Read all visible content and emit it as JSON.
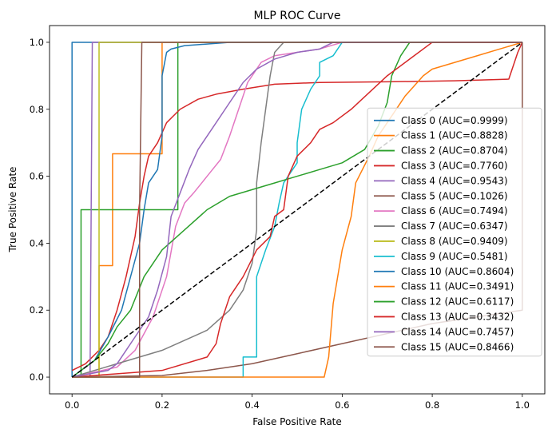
{
  "chart_data": {
    "type": "line",
    "title": "MLP ROC Curve",
    "xlabel": "False Positive Rate",
    "ylabel": "True Positive Rate",
    "xlim": [
      -0.05,
      1.05
    ],
    "ylim": [
      -0.05,
      1.05
    ],
    "xticks": [
      "0.0",
      "0.2",
      "0.4",
      "0.6",
      "0.8",
      "1.0"
    ],
    "yticks": [
      "0.0",
      "0.2",
      "0.4",
      "0.6",
      "0.8",
      "1.0"
    ],
    "grid": false,
    "legend_position": "center-right",
    "series": [
      {
        "name": "Class 0 (AUC=0.9999)",
        "color": "#1f77b4",
        "points": [
          [
            0,
            0
          ],
          [
            0,
            1
          ],
          [
            1,
            1
          ]
        ]
      },
      {
        "name": "Class 1 (AUC=0.8828)",
        "color": "#ff7f0e",
        "points": [
          [
            0,
            0
          ],
          [
            0.06,
            0
          ],
          [
            0.06,
            0.333
          ],
          [
            0.09,
            0.333
          ],
          [
            0.09,
            0.667
          ],
          [
            0.2,
            0.667
          ],
          [
            0.2,
            1
          ],
          [
            1,
            1
          ]
        ]
      },
      {
        "name": "Class 2 (AUC=0.8704)",
        "color": "#2ca02c",
        "points": [
          [
            0,
            0
          ],
          [
            0.02,
            0
          ],
          [
            0.02,
            0.5
          ],
          [
            0.235,
            0.5
          ],
          [
            0.235,
            1
          ],
          [
            1,
            1
          ]
        ]
      },
      {
        "name": "Class 3 (AUC=0.7760)",
        "color": "#d62728",
        "points": [
          [
            0,
            0.02
          ],
          [
            0.03,
            0.04
          ],
          [
            0.06,
            0.08
          ],
          [
            0.08,
            0.12
          ],
          [
            0.1,
            0.2
          ],
          [
            0.12,
            0.3
          ],
          [
            0.14,
            0.42
          ],
          [
            0.15,
            0.52
          ],
          [
            0.16,
            0.6
          ],
          [
            0.17,
            0.66
          ],
          [
            0.19,
            0.7
          ],
          [
            0.21,
            0.76
          ],
          [
            0.24,
            0.8
          ],
          [
            0.28,
            0.83
          ],
          [
            0.32,
            0.845
          ],
          [
            0.38,
            0.86
          ],
          [
            0.45,
            0.875
          ],
          [
            0.55,
            0.88
          ],
          [
            0.7,
            0.882
          ],
          [
            0.85,
            0.885
          ],
          [
            0.97,
            0.89
          ],
          [
            0.99,
            0.97
          ],
          [
            1,
            1
          ]
        ]
      },
      {
        "name": "Class 4 (AUC=0.9543)",
        "color": "#9467bd",
        "points": [
          [
            0,
            0
          ],
          [
            0.04,
            0
          ],
          [
            0.045,
            1
          ],
          [
            1,
            1
          ]
        ]
      },
      {
        "name": "Class 5 (AUC=0.1026)",
        "color": "#8c564b",
        "points": [
          [
            0,
            0
          ],
          [
            0.2,
            0.005
          ],
          [
            0.3,
            0.02
          ],
          [
            0.4,
            0.04
          ],
          [
            0.5,
            0.07
          ],
          [
            0.6,
            0.1
          ],
          [
            0.7,
            0.13
          ],
          [
            0.8,
            0.16
          ],
          [
            0.9,
            0.18
          ],
          [
            1,
            0.2
          ],
          [
            1,
            1
          ]
        ]
      },
      {
        "name": "Class 6 (AUC=0.7494)",
        "color": "#e377c2",
        "points": [
          [
            0,
            0
          ],
          [
            0.1,
            0.03
          ],
          [
            0.14,
            0.08
          ],
          [
            0.18,
            0.18
          ],
          [
            0.21,
            0.3
          ],
          [
            0.23,
            0.45
          ],
          [
            0.25,
            0.52
          ],
          [
            0.27,
            0.55
          ],
          [
            0.3,
            0.6
          ],
          [
            0.33,
            0.65
          ],
          [
            0.35,
            0.72
          ],
          [
            0.37,
            0.8
          ],
          [
            0.39,
            0.88
          ],
          [
            0.42,
            0.94
          ],
          [
            0.45,
            0.96
          ],
          [
            0.5,
            0.97
          ],
          [
            0.55,
            0.98
          ],
          [
            0.6,
            1
          ],
          [
            1,
            1
          ]
        ]
      },
      {
        "name": "Class 7 (AUC=0.6347)",
        "color": "#7f7f7f",
        "points": [
          [
            0,
            0
          ],
          [
            0.1,
            0.04
          ],
          [
            0.2,
            0.08
          ],
          [
            0.3,
            0.14
          ],
          [
            0.35,
            0.2
          ],
          [
            0.38,
            0.26
          ],
          [
            0.4,
            0.34
          ],
          [
            0.41,
            0.44
          ],
          [
            0.41,
            0.58
          ],
          [
            0.42,
            0.7
          ],
          [
            0.43,
            0.8
          ],
          [
            0.44,
            0.9
          ],
          [
            0.45,
            0.97
          ],
          [
            0.47,
            1
          ],
          [
            1,
            1
          ]
        ]
      },
      {
        "name": "Class 8 (AUC=0.9409)",
        "color": "#bcbd22",
        "points": [
          [
            0,
            0
          ],
          [
            0.06,
            0
          ],
          [
            0.06,
            1
          ],
          [
            1,
            1
          ]
        ]
      },
      {
        "name": "Class 9 (AUC=0.5481)",
        "color": "#17becf",
        "points": [
          [
            0,
            0
          ],
          [
            0.38,
            0
          ],
          [
            0.38,
            0.06
          ],
          [
            0.41,
            0.06
          ],
          [
            0.41,
            0.3
          ],
          [
            0.43,
            0.38
          ],
          [
            0.45,
            0.45
          ],
          [
            0.46,
            0.52
          ],
          [
            0.47,
            0.58
          ],
          [
            0.5,
            0.64
          ],
          [
            0.5,
            0.7
          ],
          [
            0.51,
            0.8
          ],
          [
            0.53,
            0.86
          ],
          [
            0.55,
            0.9
          ],
          [
            0.55,
            0.94
          ],
          [
            0.58,
            0.96
          ],
          [
            0.6,
            1
          ],
          [
            1,
            1
          ]
        ]
      },
      {
        "name": "Class 10 (AUC=0.8604)",
        "color": "#1f77b4",
        "points": [
          [
            0,
            0
          ],
          [
            0.05,
            0.05
          ],
          [
            0.08,
            0.12
          ],
          [
            0.11,
            0.2
          ],
          [
            0.13,
            0.3
          ],
          [
            0.15,
            0.4
          ],
          [
            0.16,
            0.5
          ],
          [
            0.17,
            0.58
          ],
          [
            0.18,
            0.6
          ],
          [
            0.19,
            0.62
          ],
          [
            0.2,
            0.72
          ],
          [
            0.2,
            0.9
          ],
          [
            0.21,
            0.97
          ],
          [
            0.22,
            0.98
          ],
          [
            0.25,
            0.99
          ],
          [
            0.35,
            1
          ],
          [
            1,
            1
          ]
        ]
      },
      {
        "name": "Class 11 (AUC=0.3491)",
        "color": "#ff7f0e",
        "points": [
          [
            0,
            0
          ],
          [
            0.56,
            0
          ],
          [
            0.57,
            0.06
          ],
          [
            0.58,
            0.22
          ],
          [
            0.6,
            0.38
          ],
          [
            0.62,
            0.48
          ],
          [
            0.63,
            0.58
          ],
          [
            0.66,
            0.66
          ],
          [
            0.68,
            0.72
          ],
          [
            0.7,
            0.76
          ],
          [
            0.72,
            0.8
          ],
          [
            0.74,
            0.84
          ],
          [
            0.76,
            0.87
          ],
          [
            0.78,
            0.9
          ],
          [
            0.8,
            0.92
          ],
          [
            0.85,
            0.94
          ],
          [
            0.9,
            0.96
          ],
          [
            0.95,
            0.98
          ],
          [
            1,
            1
          ]
        ]
      },
      {
        "name": "Class 12 (AUC=0.6117)",
        "color": "#2ca02c",
        "points": [
          [
            0,
            0
          ],
          [
            0.05,
            0.05
          ],
          [
            0.08,
            0.1
          ],
          [
            0.1,
            0.15
          ],
          [
            0.13,
            0.2
          ],
          [
            0.16,
            0.3
          ],
          [
            0.2,
            0.38
          ],
          [
            0.25,
            0.44
          ],
          [
            0.3,
            0.5
          ],
          [
            0.35,
            0.54
          ],
          [
            0.4,
            0.56
          ],
          [
            0.45,
            0.58
          ],
          [
            0.5,
            0.6
          ],
          [
            0.55,
            0.62
          ],
          [
            0.6,
            0.64
          ],
          [
            0.65,
            0.68
          ],
          [
            0.68,
            0.75
          ],
          [
            0.7,
            0.82
          ],
          [
            0.71,
            0.9
          ],
          [
            0.73,
            0.96
          ],
          [
            0.75,
            1
          ],
          [
            1,
            1
          ]
        ]
      },
      {
        "name": "Class 13 (AUC=0.3432)",
        "color": "#d62728",
        "points": [
          [
            0,
            0
          ],
          [
            0.1,
            0.01
          ],
          [
            0.2,
            0.02
          ],
          [
            0.3,
            0.06
          ],
          [
            0.32,
            0.1
          ],
          [
            0.33,
            0.16
          ],
          [
            0.35,
            0.24
          ],
          [
            0.38,
            0.3
          ],
          [
            0.41,
            0.38
          ],
          [
            0.44,
            0.42
          ],
          [
            0.45,
            0.48
          ],
          [
            0.47,
            0.5
          ],
          [
            0.48,
            0.6
          ],
          [
            0.5,
            0.66
          ],
          [
            0.53,
            0.7
          ],
          [
            0.55,
            0.74
          ],
          [
            0.58,
            0.76
          ],
          [
            0.62,
            0.8
          ],
          [
            0.66,
            0.85
          ],
          [
            0.7,
            0.9
          ],
          [
            0.75,
            0.95
          ],
          [
            0.8,
            1
          ],
          [
            1,
            1
          ]
        ]
      },
      {
        "name": "Class 14 (AUC=0.7457)",
        "color": "#9467bd",
        "points": [
          [
            0,
            0
          ],
          [
            0.08,
            0.02
          ],
          [
            0.1,
            0.04
          ],
          [
            0.12,
            0.08
          ],
          [
            0.14,
            0.12
          ],
          [
            0.17,
            0.18
          ],
          [
            0.19,
            0.26
          ],
          [
            0.21,
            0.36
          ],
          [
            0.22,
            0.48
          ],
          [
            0.24,
            0.55
          ],
          [
            0.26,
            0.62
          ],
          [
            0.28,
            0.68
          ],
          [
            0.3,
            0.72
          ],
          [
            0.32,
            0.76
          ],
          [
            0.35,
            0.82
          ],
          [
            0.38,
            0.88
          ],
          [
            0.41,
            0.92
          ],
          [
            0.45,
            0.95
          ],
          [
            0.5,
            0.97
          ],
          [
            0.55,
            0.98
          ],
          [
            0.58,
            1
          ],
          [
            1,
            1
          ]
        ]
      },
      {
        "name": "Class 15 (AUC=0.8466)",
        "color": "#8c564b",
        "points": [
          [
            0,
            0
          ],
          [
            0.15,
            0
          ],
          [
            0.15,
            0.5
          ],
          [
            0.155,
            1
          ],
          [
            1,
            1
          ]
        ]
      }
    ],
    "diagonal": {
      "points": [
        [
          0,
          0
        ],
        [
          1,
          1
        ]
      ],
      "color": "#000000",
      "style": "dashed"
    }
  }
}
